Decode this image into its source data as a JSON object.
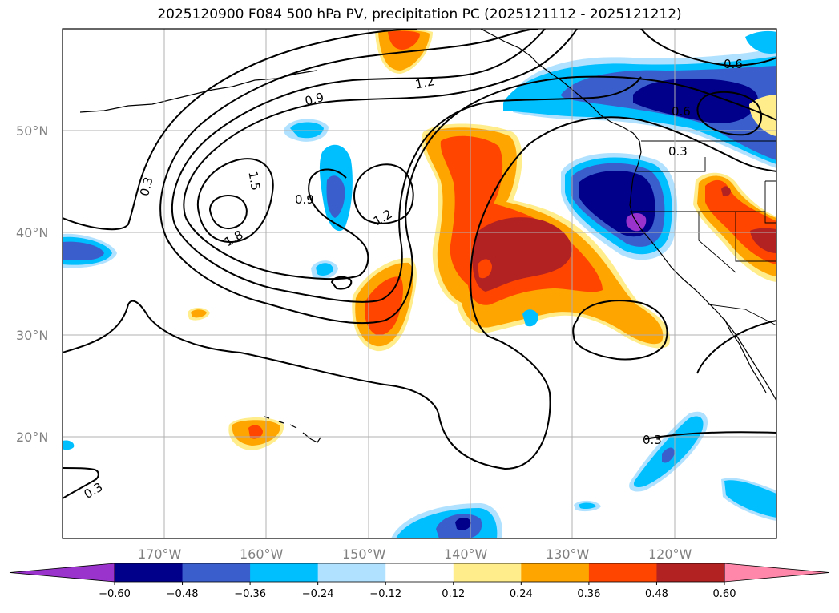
{
  "title": "2025120900 F084 500 hPa PV, precipitation PC (2025121112 - 2025121212)",
  "lat_labels": [
    "50°N",
    "40°N",
    "30°N",
    "20°N"
  ],
  "lon_labels": [
    "170°W",
    "160°W",
    "150°W",
    "140°W",
    "130°W",
    "120°W"
  ],
  "contour_labels": [
    "0.3",
    "0.9",
    "1.2",
    "1.5",
    "1.8",
    "0.9",
    "1.2",
    "0.6",
    "0.6",
    "0.3",
    "0.3",
    "0.3"
  ],
  "colorbar": {
    "ticks": [
      "−0.60",
      "−0.48",
      "−0.36",
      "−0.24",
      "−0.12",
      "0.12",
      "0.24",
      "0.36",
      "0.48",
      "0.60"
    ],
    "colors": [
      "#9933cc",
      "#00008b",
      "#3a5fcd",
      "#00bfff",
      "#b0e2ff",
      "#ffffff",
      "#ffec8b",
      "#ffa500",
      "#ff4500",
      "#b22222",
      "#ff88aa"
    ]
  },
  "palette": {
    "n_darkblue": "#00008b",
    "n_blue": "#3a5fcd",
    "n_cyan": "#00bfff",
    "n_lightblue": "#b0e2ff",
    "n_purple": "#9933cc",
    "p_yellow": "#ffec8b",
    "p_orange": "#ffa500",
    "p_red": "#ff4500",
    "p_darkred": "#b22222"
  }
}
